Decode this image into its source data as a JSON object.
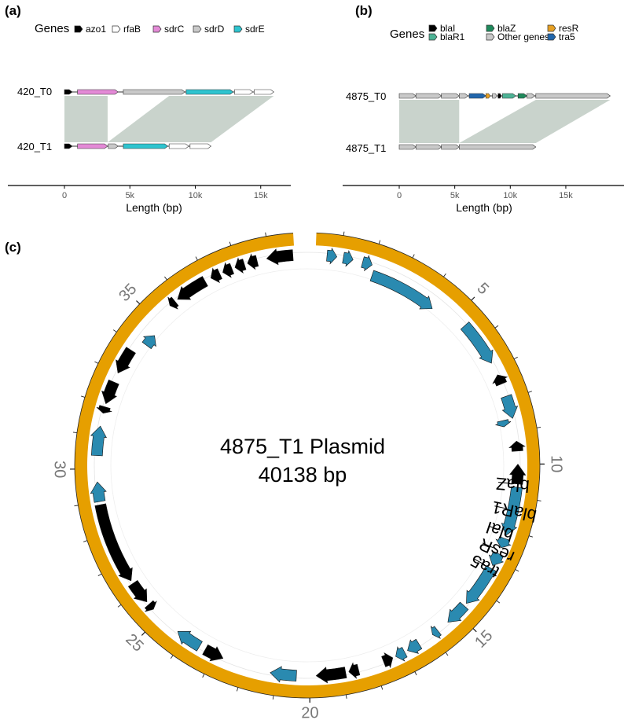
{
  "panel_a": {
    "label": "(a)",
    "legend": {
      "title": "Genes",
      "items": [
        {
          "name": "azo1",
          "color": "#000000"
        },
        {
          "name": "rfaB",
          "color": "#ffffff"
        },
        {
          "name": "sdrC",
          "color": "#e38ad6"
        },
        {
          "name": "sdrD",
          "color": "#c9c9c9"
        },
        {
          "name": "sdrE",
          "color": "#2ec4cf"
        }
      ]
    },
    "tracks": [
      {
        "name": "420_T0",
        "genes": [
          {
            "start": 0,
            "end": 600,
            "color": "#000000"
          },
          {
            "start": 1000,
            "end": 4100,
            "color": "#e38ad6"
          },
          {
            "start": 4500,
            "end": 9200,
            "color": "#c9c9c9"
          },
          {
            "start": 9300,
            "end": 12900,
            "color": "#2ec4cf"
          },
          {
            "start": 13000,
            "end": 14400,
            "color": "#ffffff"
          },
          {
            "start": 14500,
            "end": 16000,
            "color": "#ffffff"
          }
        ]
      },
      {
        "name": "420_T1",
        "genes": [
          {
            "start": 0,
            "end": 600,
            "color": "#000000"
          },
          {
            "start": 1000,
            "end": 3300,
            "color": "#e38ad6"
          },
          {
            "start": 3350,
            "end": 4100,
            "color": "#c9c9c9"
          },
          {
            "start": 4500,
            "end": 7900,
            "color": "#2ec4cf"
          },
          {
            "start": 8000,
            "end": 9500,
            "color": "#ffffff"
          },
          {
            "start": 9600,
            "end": 11200,
            "color": "#ffffff"
          }
        ]
      }
    ],
    "synteny": [
      {
        "t0": [
          0,
          3300
        ],
        "t1": [
          0,
          3300
        ]
      },
      {
        "t0": [
          8000,
          16000
        ],
        "t1": [
          3300,
          11200
        ]
      }
    ],
    "axis": {
      "title": "Length (bp)",
      "ticks": [
        "0",
        "5k",
        "10k",
        "15k"
      ],
      "tick_values": [
        0,
        5000,
        10000,
        15000
      ]
    }
  },
  "panel_b": {
    "label": "(b)",
    "legend": {
      "title": "Genes",
      "items": [
        {
          "name": "blaI",
          "color": "#000000"
        },
        {
          "name": "blaZ",
          "color": "#1f8a5c"
        },
        {
          "name": "resR",
          "color": "#e6a024"
        },
        {
          "name": "blaR1",
          "color": "#4db395"
        },
        {
          "name": "Other genes",
          "color": "#c9c9c9"
        },
        {
          "name": "tra5",
          "color": "#2166ac"
        }
      ]
    },
    "tracks": [
      {
        "name": "4875_T0",
        "genes": [
          {
            "start": 0,
            "end": 1500,
            "color": "#c9c9c9"
          },
          {
            "start": 1500,
            "end": 3800,
            "color": "#c9c9c9"
          },
          {
            "start": 3800,
            "end": 5400,
            "color": "#c9c9c9"
          },
          {
            "start": 5400,
            "end": 6200,
            "color": "#c9c9c9"
          },
          {
            "start": 6300,
            "end": 7800,
            "color": "#2166ac"
          },
          {
            "start": 7800,
            "end": 8200,
            "color": "#e6a024"
          },
          {
            "start": 8400,
            "end": 8800,
            "color": "#c9c9c9"
          },
          {
            "start": 8900,
            "end": 9200,
            "color": "#000000"
          },
          {
            "start": 9300,
            "end": 10500,
            "color": "#4db395"
          },
          {
            "start": 10700,
            "end": 11500,
            "color": "#1f8a5c"
          },
          {
            "start": 11500,
            "end": 12200,
            "color": "#c9c9c9"
          },
          {
            "start": 12300,
            "end": 19000,
            "color": "#c9c9c9"
          }
        ]
      },
      {
        "name": "4875_T1",
        "genes": [
          {
            "start": 0,
            "end": 1500,
            "color": "#c9c9c9"
          },
          {
            "start": 1500,
            "end": 3800,
            "color": "#c9c9c9"
          },
          {
            "start": 3800,
            "end": 5400,
            "color": "#c9c9c9"
          },
          {
            "start": 5400,
            "end": 12300,
            "color": "#c9c9c9"
          }
        ]
      }
    ],
    "synteny": [
      {
        "t0": [
          0,
          5400
        ],
        "t1": [
          0,
          5400
        ]
      },
      {
        "t0": [
          12300,
          19000
        ],
        "t1": [
          5400,
          12300
        ]
      }
    ],
    "axis": {
      "title": "Length (bp)",
      "ticks": [
        "0",
        "5k",
        "10k",
        "15k"
      ],
      "tick_values": [
        0,
        5000,
        10000,
        15000
      ]
    }
  },
  "panel_c": {
    "label": "(c)",
    "title_line1": "4875_T1 Plasmid",
    "title_line2": "40138 bp",
    "total_kb": 40.138,
    "ring_color": "#e69f00",
    "ticks": [
      "5",
      "10",
      "15",
      "20",
      "25",
      "30",
      "35"
    ],
    "tick_values": [
      5,
      10,
      15,
      20,
      25,
      30,
      35
    ],
    "callouts": [
      {
        "label": "blaZ",
        "pos_kb": 10.6
      },
      {
        "label": "blaR1",
        "pos_kb": 11.4
      },
      {
        "label": "blaI",
        "pos_kb": 12.1
      },
      {
        "label": "resR",
        "pos_kb": 12.7
      },
      {
        "label": "tra5",
        "pos_kb": 13.3
      }
    ],
    "genes": [
      {
        "start": 0.6,
        "end": 0.9,
        "strand": "+",
        "lane": "outer",
        "color": "#2a8ab0"
      },
      {
        "start": 1.1,
        "end": 1.4,
        "strand": "+",
        "lane": "outer",
        "color": "#2a8ab0"
      },
      {
        "start": 1.7,
        "end": 2.0,
        "strand": "+",
        "lane": "outer",
        "color": "#2a8ab0"
      },
      {
        "start": 2.1,
        "end": 4.3,
        "strand": "+",
        "lane": "inner",
        "color": "#2a8ab0"
      },
      {
        "start": 5.4,
        "end": 6.8,
        "strand": "+",
        "lane": "outer",
        "color": "#2a8ab0"
      },
      {
        "start": 7.2,
        "end": 7.5,
        "strand": "-",
        "lane": "outer",
        "color": "#000000"
      },
      {
        "start": 7.9,
        "end": 8.6,
        "strand": "+",
        "lane": "outer",
        "color": "#2a8ab0"
      },
      {
        "start": 8.6,
        "end": 8.8,
        "strand": "+",
        "lane": "inner",
        "color": "#2a8ab0"
      },
      {
        "start": 9.3,
        "end": 9.6,
        "strand": "-",
        "lane": "outer",
        "color": "#000000"
      },
      {
        "start": 10.0,
        "end": 10.6,
        "strand": "-",
        "lane": "outer",
        "color": "#000000"
      },
      {
        "start": 10.7,
        "end": 12.2,
        "strand": "+",
        "lane": "outer",
        "color": "#2a8ab0"
      },
      {
        "start": 12.3,
        "end": 12.6,
        "strand": "+",
        "lane": "outer",
        "color": "#2a8ab0"
      },
      {
        "start": 12.8,
        "end": 13.2,
        "strand": "+",
        "lane": "outer",
        "color": "#2a8ab0"
      },
      {
        "start": 13.3,
        "end": 14.6,
        "strand": "+",
        "lane": "outer",
        "color": "#2a8ab0"
      },
      {
        "start": 14.7,
        "end": 15.4,
        "strand": "+",
        "lane": "outer",
        "color": "#2a8ab0"
      },
      {
        "start": 15.8,
        "end": 16.0,
        "strand": "+",
        "lane": "outer",
        "color": "#2a8ab0"
      },
      {
        "start": 16.5,
        "end": 16.9,
        "strand": "+",
        "lane": "outer",
        "color": "#2a8ab0"
      },
      {
        "start": 17.0,
        "end": 17.3,
        "strand": "+",
        "lane": "outer",
        "color": "#2a8ab0"
      },
      {
        "start": 17.4,
        "end": 17.7,
        "strand": "-",
        "lane": "outer",
        "color": "#000000"
      },
      {
        "start": 18.5,
        "end": 18.8,
        "strand": "+",
        "lane": "outer",
        "color": "#000000"
      },
      {
        "start": 18.9,
        "end": 19.8,
        "strand": "+",
        "lane": "outer",
        "color": "#000000"
      },
      {
        "start": 20.4,
        "end": 21.2,
        "strand": "+",
        "lane": "outer",
        "color": "#2a8ab0"
      },
      {
        "start": 22.7,
        "end": 23.3,
        "strand": "-",
        "lane": "outer",
        "color": "#000000"
      },
      {
        "start": 23.5,
        "end": 24.3,
        "strand": "+",
        "lane": "outer",
        "color": "#2a8ab0"
      },
      {
        "start": 25.3,
        "end": 25.5,
        "strand": "-",
        "lane": "outer",
        "color": "#000000"
      },
      {
        "start": 25.6,
        "end": 26.3,
        "strand": "-",
        "lane": "outer",
        "color": "#000000"
      },
      {
        "start": 26.4,
        "end": 28.9,
        "strand": "-",
        "lane": "outer",
        "color": "#000000"
      },
      {
        "start": 29.0,
        "end": 29.6,
        "strand": "+",
        "lane": "outer",
        "color": "#2a8ab0"
      },
      {
        "start": 30.4,
        "end": 31.3,
        "strand": "+",
        "lane": "outer",
        "color": "#2a8ab0"
      },
      {
        "start": 31.7,
        "end": 31.9,
        "strand": "-",
        "lane": "outer",
        "color": "#000000"
      },
      {
        "start": 32.0,
        "end": 32.7,
        "strand": "-",
        "lane": "outer",
        "color": "#000000"
      },
      {
        "start": 33.0,
        "end": 33.8,
        "strand": "-",
        "lane": "outer",
        "color": "#000000"
      },
      {
        "start": 34.2,
        "end": 34.6,
        "strand": "+",
        "lane": "inner",
        "color": "#2a8ab0"
      },
      {
        "start": 35.6,
        "end": 35.8,
        "strand": "-",
        "lane": "outer",
        "color": "#000000"
      },
      {
        "start": 35.9,
        "end": 36.9,
        "strand": "-",
        "lane": "outer",
        "color": "#000000"
      },
      {
        "start": 37.1,
        "end": 37.4,
        "strand": "-",
        "lane": "outer",
        "color": "#000000"
      },
      {
        "start": 37.5,
        "end": 37.8,
        "strand": "-",
        "lane": "outer",
        "color": "#000000"
      },
      {
        "start": 37.9,
        "end": 38.2,
        "strand": "-",
        "lane": "outer",
        "color": "#000000"
      },
      {
        "start": 38.3,
        "end": 38.6,
        "strand": "-",
        "lane": "outer",
        "color": "#000000"
      },
      {
        "start": 38.9,
        "end": 39.7,
        "strand": "-",
        "lane": "outer",
        "color": "#000000"
      }
    ]
  }
}
